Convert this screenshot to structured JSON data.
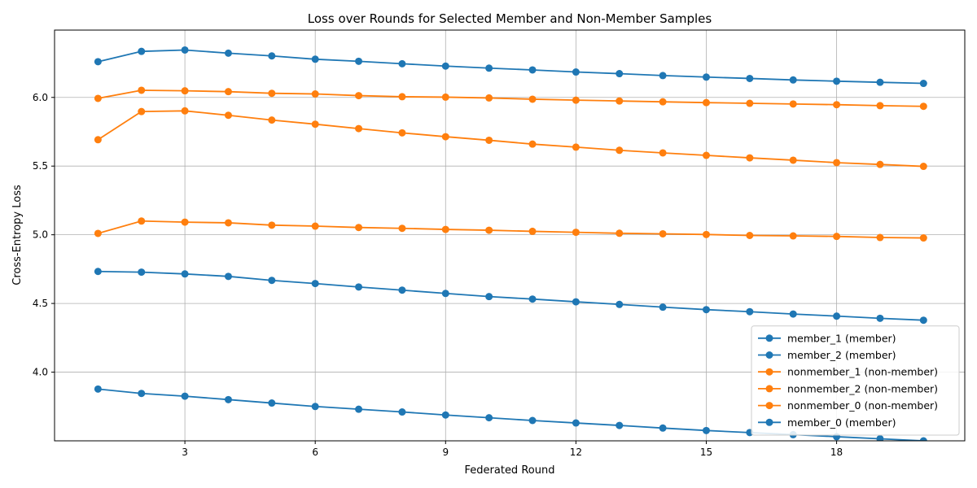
{
  "chart_data": {
    "type": "line",
    "title": "Loss over Rounds for Selected Member and Non-Member Samples",
    "xlabel": "Federated Round",
    "ylabel": "Cross-Entropy Loss",
    "x": [
      1,
      2,
      3,
      4,
      5,
      6,
      7,
      8,
      9,
      10,
      11,
      12,
      13,
      14,
      15,
      16,
      17,
      18,
      19,
      20
    ],
    "xticks": [
      3,
      6,
      9,
      12,
      15,
      18
    ],
    "yticks": [
      4.0,
      4.5,
      5.0,
      5.5,
      6.0
    ],
    "xlim": [
      0.0,
      20.95
    ],
    "ylim": [
      3.5,
      6.49
    ],
    "grid": true,
    "legend_position": "lower right",
    "colors": {
      "member": "#1f77b4",
      "nonmember": "#ff7f0e"
    },
    "series": [
      {
        "name": "member_1 (member)",
        "group": "member",
        "values": [
          6.26,
          6.335,
          6.345,
          6.322,
          6.302,
          6.278,
          6.263,
          6.245,
          6.228,
          6.213,
          6.2,
          6.185,
          6.173,
          6.159,
          6.148,
          6.138,
          6.127,
          6.118,
          6.11,
          6.102
        ]
      },
      {
        "name": "member_2 (member)",
        "group": "member",
        "values": [
          4.733,
          4.728,
          4.715,
          4.697,
          4.668,
          4.645,
          4.62,
          4.597,
          4.573,
          4.55,
          4.532,
          4.512,
          4.493,
          4.473,
          4.455,
          4.44,
          4.423,
          4.408,
          4.392,
          4.378
        ]
      },
      {
        "name": "nonmember_1 (non-member)",
        "group": "nonmember",
        "values": [
          5.993,
          6.052,
          6.048,
          6.042,
          6.03,
          6.025,
          6.013,
          6.005,
          6.002,
          5.996,
          5.987,
          5.98,
          5.974,
          5.968,
          5.962,
          5.957,
          5.952,
          5.947,
          5.94,
          5.935
        ]
      },
      {
        "name": "nonmember_2 (non-member)",
        "group": "nonmember",
        "values": [
          5.692,
          5.897,
          5.902,
          5.87,
          5.835,
          5.805,
          5.773,
          5.742,
          5.714,
          5.688,
          5.66,
          5.638,
          5.615,
          5.596,
          5.578,
          5.56,
          5.543,
          5.525,
          5.512,
          5.498
        ]
      },
      {
        "name": "nonmember_0 (non-member)",
        "group": "nonmember",
        "values": [
          5.01,
          5.1,
          5.092,
          5.087,
          5.07,
          5.063,
          5.053,
          5.047,
          5.039,
          5.033,
          5.025,
          5.018,
          5.011,
          5.007,
          5.002,
          4.995,
          4.992,
          4.988,
          4.98,
          4.977
        ]
      },
      {
        "name": "member_0 (member)",
        "group": "member",
        "values": [
          3.877,
          3.845,
          3.825,
          3.8,
          3.775,
          3.75,
          3.73,
          3.71,
          3.688,
          3.668,
          3.648,
          3.63,
          3.612,
          3.593,
          3.575,
          3.56,
          3.545,
          3.53,
          3.515,
          3.5
        ]
      }
    ]
  }
}
